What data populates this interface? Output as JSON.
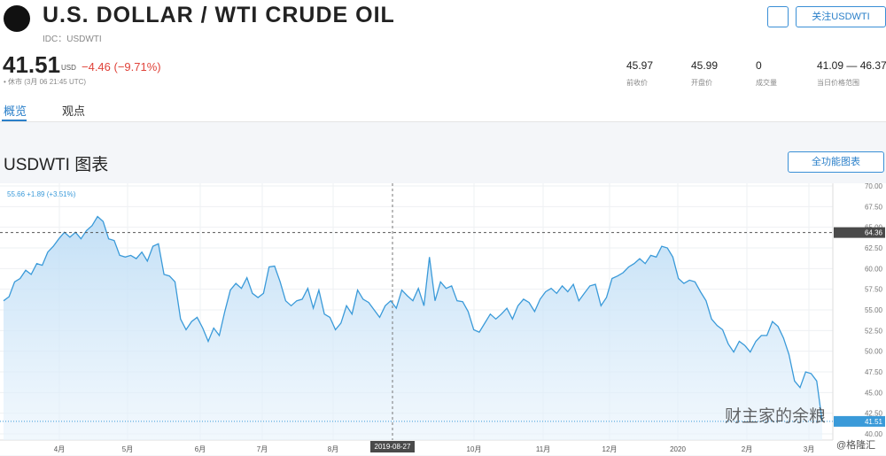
{
  "header": {
    "title": "U.S. DOLLAR / WTI CRUDE OIL",
    "code": "IDC：USDWTI",
    "follow": "关注USDWTI"
  },
  "quote": {
    "price": "41.51",
    "currency": "USD",
    "change": "−4.46 (−9.71%)",
    "status": "• 休市 (3月 06 21:45 UTC)"
  },
  "stats": [
    {
      "value": "45.97",
      "label": "前收价"
    },
    {
      "value": "45.99",
      "label": "开盘价"
    },
    {
      "value": "0",
      "label": "成交量"
    },
    {
      "value": "41.09 — 46.37",
      "label": "当日价格范围"
    }
  ],
  "tabs": [
    "概览",
    "观点"
  ],
  "section": {
    "title": "USDWTI 图表",
    "button": "全功能图表"
  },
  "watermark": [
    "财主家的余粮",
    "@格隆汇"
  ],
  "chart_data": {
    "type": "line",
    "legend_text": "55.66 +1.89 (+3.51%)",
    "series": [
      {
        "name": "USDWTI",
        "color": "#3a9ad9",
        "values": [
          56.1,
          56.6,
          58.4,
          58.8,
          59.8,
          59.3,
          60.6,
          60.4,
          62.0,
          62.7,
          63.6,
          64.4,
          63.8,
          64.4,
          63.6,
          64.6,
          65.2,
          66.3,
          65.7,
          63.6,
          63.4,
          61.6,
          61.4,
          61.6,
          61.2,
          62.0,
          60.9,
          62.7,
          63.0,
          59.3,
          59.1,
          58.4,
          53.9,
          52.6,
          53.6,
          54.1,
          52.8,
          51.2,
          52.8,
          51.9,
          54.8,
          57.4,
          58.2,
          57.6,
          58.9,
          57.0,
          56.5,
          57.0,
          60.2,
          60.3,
          58.4,
          56.1,
          55.5,
          56.1,
          56.3,
          57.6,
          55.2,
          57.4,
          54.5,
          54.1,
          52.6,
          53.4,
          55.5,
          54.5,
          57.4,
          56.3,
          55.9,
          55.0,
          54.1,
          55.5,
          56.1,
          55.2,
          57.4,
          56.7,
          56.1,
          57.6,
          55.5,
          61.4,
          56.1,
          58.4,
          57.6,
          57.9,
          56.1,
          56.0,
          54.8,
          52.6,
          52.3,
          53.4,
          54.5,
          53.9,
          54.5,
          55.2,
          53.9,
          55.5,
          56.3,
          55.9,
          54.8,
          56.3,
          57.2,
          57.6,
          57.0,
          57.9,
          57.2,
          58.1,
          56.1,
          57.0,
          57.9,
          58.1,
          55.5,
          56.5,
          58.8,
          59.1,
          59.5,
          60.2,
          60.6,
          61.2,
          60.6,
          61.6,
          61.4,
          62.7,
          62.5,
          61.4,
          58.8,
          58.2,
          58.6,
          58.4,
          57.2,
          56.1,
          53.9,
          53.1,
          52.6,
          50.9,
          49.9,
          51.2,
          50.7,
          49.9,
          51.2,
          51.9,
          51.9,
          53.6,
          53.0,
          51.6,
          49.6,
          46.4,
          45.6,
          47.5,
          47.3,
          46.4,
          41.51
        ]
      }
    ],
    "last_label": "41.51",
    "crosshair": {
      "value": 64.36,
      "label": "64.36",
      "date": "2019-08-27"
    },
    "xtick_labels": [
      "4月",
      "5月",
      "6月",
      "7月",
      "8月",
      "10月",
      "11月",
      "12月",
      "2020",
      "2月",
      "3月"
    ],
    "ylim": [
      39.25,
      70.32
    ],
    "yticks": [
      {
        "value": 40,
        "label": "40.00"
      },
      {
        "value": 42.5,
        "label": "42.50"
      },
      {
        "value": 45,
        "label": "45.00"
      },
      {
        "value": 47.5,
        "label": "47.50"
      },
      {
        "value": 50,
        "label": "50.00"
      },
      {
        "value": 52.5,
        "label": "52.50"
      },
      {
        "value": 55,
        "label": "55.00"
      },
      {
        "value": 57.5,
        "label": "57.50"
      },
      {
        "value": 60,
        "label": "60.00"
      },
      {
        "value": 62.5,
        "label": "62.50"
      },
      {
        "value": 65,
        "label": "65.00"
      },
      {
        "value": 67.5,
        "label": "67.50"
      },
      {
        "value": 70,
        "label": "70.00"
      }
    ],
    "grid": true
  }
}
